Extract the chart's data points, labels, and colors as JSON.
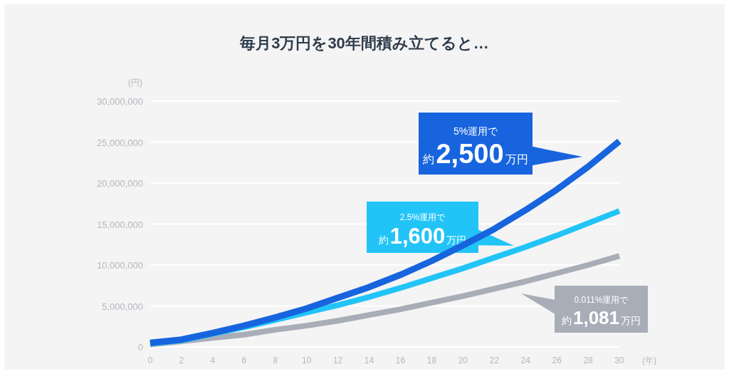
{
  "chart_data": {
    "type": "line",
    "title": "毎月3万円を30年間積み立てると…",
    "ylabel": "(円)",
    "xlabel": "(年)",
    "x": [
      0,
      2,
      4,
      6,
      8,
      10,
      12,
      14,
      16,
      18,
      20,
      22,
      24,
      26,
      28,
      30
    ],
    "xlim": [
      0,
      30
    ],
    "xticks": [
      0,
      2,
      4,
      6,
      8,
      10,
      12,
      14,
      16,
      18,
      20,
      22,
      24,
      26,
      28,
      30
    ],
    "ylim": [
      0,
      30000000
    ],
    "yticks": [
      {
        "value": 0,
        "label": "0"
      },
      {
        "value": 5000000,
        "label": "5,000,000"
      },
      {
        "value": 10000000,
        "label": "10,000,000"
      },
      {
        "value": 15000000,
        "label": "15,000,000"
      },
      {
        "value": 20000000,
        "label": "20,000,000"
      },
      {
        "value": 25000000,
        "label": "25,000,000"
      },
      {
        "value": 30000000,
        "label": "30,000,000"
      }
    ],
    "grid": "y",
    "series": [
      {
        "color": "#a8adb8",
        "values": [
          300000,
          700000,
          1100000,
          1500000,
          2100000,
          2600000,
          3200000,
          3900000,
          4600000,
          5400000,
          6200000,
          7100000,
          8000000,
          9000000,
          10000000,
          11100000
        ]
      },
      {
        "color": "#22c4f8",
        "values": [
          400000,
          800000,
          1600000,
          2400000,
          3300000,
          4200000,
          5100000,
          6100000,
          7200000,
          8400000,
          9600000,
          10900000,
          12200000,
          13600000,
          15100000,
          16600000
        ]
      },
      {
        "color": "#1764de",
        "values": [
          500000,
          900000,
          1700000,
          2600000,
          3600000,
          4700000,
          6000000,
          7300000,
          8800000,
          10500000,
          12400000,
          14400000,
          16700000,
          19200000,
          22000000,
          25100000
        ]
      }
    ],
    "annotations": [
      "0.011%運用で約1,081万円",
      "2.5%運用で約1,600万円",
      "5%運用で約2,500万円"
    ]
  }
}
